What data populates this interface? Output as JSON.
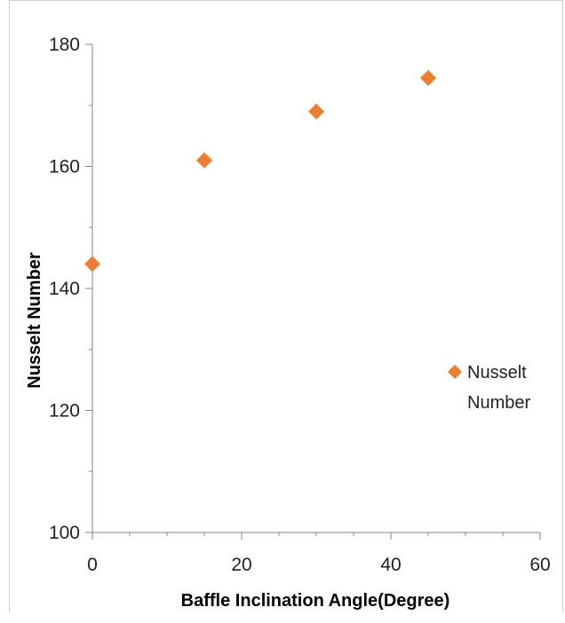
{
  "chart_data": {
    "type": "scatter",
    "title": "",
    "xlabel": "Baffle Inclination Angle(Degree)",
    "ylabel": "Nusselt Number",
    "xlim": [
      0,
      60
    ],
    "ylim": [
      100,
      180
    ],
    "x_ticks": [
      0,
      20,
      40,
      60
    ],
    "y_ticks": [
      100,
      120,
      140,
      160,
      180
    ],
    "grid": false,
    "legend_position": "right",
    "series": [
      {
        "name": "Nusselt Number",
        "color": "#ED7D31",
        "marker": "diamond",
        "x": [
          0,
          15,
          30,
          45
        ],
        "y": [
          144,
          161,
          169,
          174.5
        ]
      }
    ]
  },
  "legend": {
    "line1": "Nusselt",
    "line2": "Number"
  }
}
